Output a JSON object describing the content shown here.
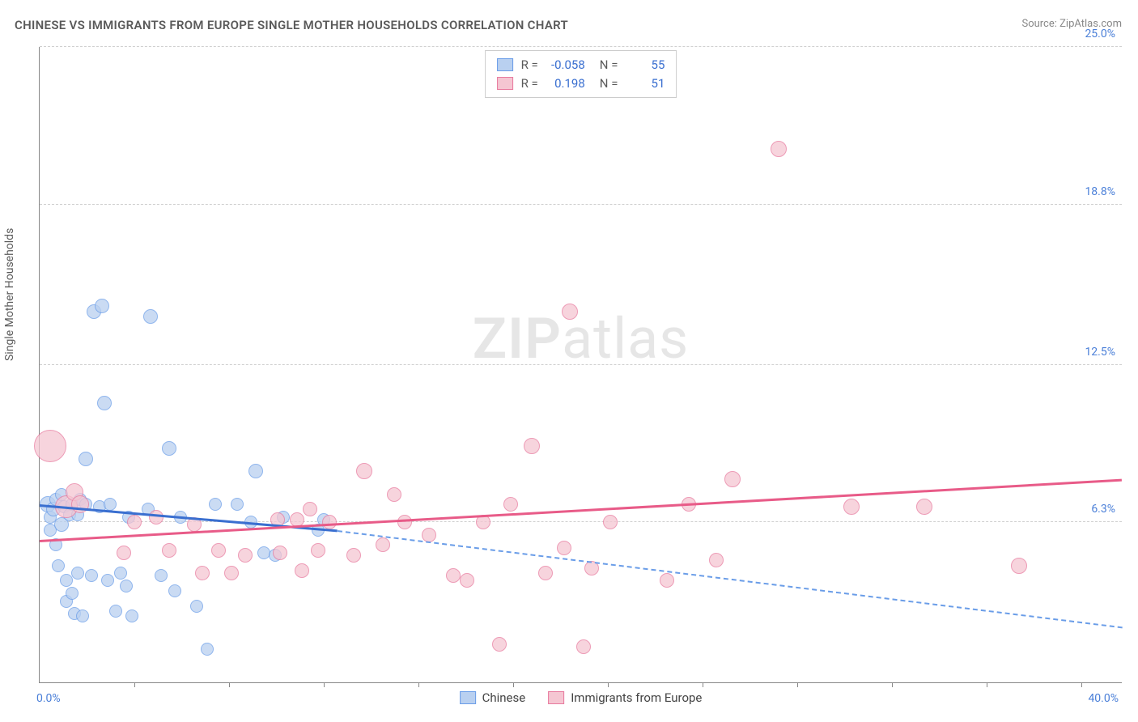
{
  "title": "CHINESE VS IMMIGRANTS FROM EUROPE SINGLE MOTHER HOUSEHOLDS CORRELATION CHART",
  "source": "Source: ZipAtlas.com",
  "ylabel": "Single Mother Households",
  "watermark_bold": "ZIP",
  "watermark_rest": "atlas",
  "chart": {
    "type": "scatter",
    "xlim": [
      0,
      40
    ],
    "ylim": [
      0,
      25
    ],
    "xtick_labels": {
      "min": "0.0%",
      "max": "40.0%"
    },
    "ytick_lines": [
      {
        "v": 6.3,
        "label": "6.3%"
      },
      {
        "v": 12.5,
        "label": "12.5%"
      },
      {
        "v": 18.8,
        "label": "18.8%"
      },
      {
        "v": 25.0,
        "label": "25.0%"
      }
    ],
    "vtick_positions": [
      3.5,
      7,
      10.5,
      14,
      17.5,
      21,
      24.5,
      28,
      31.5,
      35,
      38.5
    ],
    "background_color": "#ffffff",
    "grid_color": "#d0d0d0",
    "series": [
      {
        "key": "chinese",
        "label": "Chinese",
        "fill": "#b9d0f0",
        "stroke": "#6a9de8",
        "R": "-0.058",
        "N": "55",
        "trend": {
          "x1": 0,
          "y1": 7.0,
          "x2": 11,
          "y2": 6.0,
          "solid_color": "#3a6fd0",
          "dash_from_x": 11,
          "dash_to_x": 40,
          "dash_y1": 6.0,
          "dash_y2": 2.2,
          "dash_color": "#6a9de8"
        },
        "points": [
          {
            "x": 0.3,
            "y": 7.0,
            "r": 10
          },
          {
            "x": 0.4,
            "y": 6.5,
            "r": 8
          },
          {
            "x": 0.4,
            "y": 6.0,
            "r": 8
          },
          {
            "x": 0.5,
            "y": 6.8,
            "r": 9
          },
          {
            "x": 0.6,
            "y": 7.2,
            "r": 8
          },
          {
            "x": 0.6,
            "y": 5.4,
            "r": 8
          },
          {
            "x": 0.7,
            "y": 4.6,
            "r": 8
          },
          {
            "x": 0.8,
            "y": 6.2,
            "r": 9
          },
          {
            "x": 0.8,
            "y": 7.4,
            "r": 8
          },
          {
            "x": 0.9,
            "y": 6.9,
            "r": 8
          },
          {
            "x": 1.0,
            "y": 4.0,
            "r": 8
          },
          {
            "x": 1.0,
            "y": 3.2,
            "r": 8
          },
          {
            "x": 1.1,
            "y": 6.6,
            "r": 8
          },
          {
            "x": 1.2,
            "y": 3.5,
            "r": 8
          },
          {
            "x": 1.2,
            "y": 7.0,
            "r": 8
          },
          {
            "x": 1.3,
            "y": 2.7,
            "r": 8
          },
          {
            "x": 1.4,
            "y": 6.6,
            "r": 8
          },
          {
            "x": 1.4,
            "y": 4.3,
            "r": 8
          },
          {
            "x": 1.5,
            "y": 7.2,
            "r": 8
          },
          {
            "x": 1.6,
            "y": 2.6,
            "r": 8
          },
          {
            "x": 1.7,
            "y": 8.8,
            "r": 9
          },
          {
            "x": 1.7,
            "y": 7.0,
            "r": 8
          },
          {
            "x": 1.9,
            "y": 4.2,
            "r": 8
          },
          {
            "x": 2.0,
            "y": 14.6,
            "r": 9
          },
          {
            "x": 2.2,
            "y": 6.9,
            "r": 8
          },
          {
            "x": 2.3,
            "y": 14.8,
            "r": 9
          },
          {
            "x": 2.4,
            "y": 11.0,
            "r": 9
          },
          {
            "x": 2.5,
            "y": 4.0,
            "r": 8
          },
          {
            "x": 2.6,
            "y": 7.0,
            "r": 8
          },
          {
            "x": 2.8,
            "y": 2.8,
            "r": 8
          },
          {
            "x": 3.0,
            "y": 4.3,
            "r": 8
          },
          {
            "x": 3.2,
            "y": 3.8,
            "r": 8
          },
          {
            "x": 3.3,
            "y": 6.5,
            "r": 8
          },
          {
            "x": 3.4,
            "y": 2.6,
            "r": 8
          },
          {
            "x": 4.0,
            "y": 6.8,
            "r": 8
          },
          {
            "x": 4.1,
            "y": 14.4,
            "r": 9
          },
          {
            "x": 4.5,
            "y": 4.2,
            "r": 8
          },
          {
            "x": 4.8,
            "y": 9.2,
            "r": 9
          },
          {
            "x": 5.0,
            "y": 3.6,
            "r": 8
          },
          {
            "x": 5.2,
            "y": 6.5,
            "r": 8
          },
          {
            "x": 5.8,
            "y": 3.0,
            "r": 8
          },
          {
            "x": 6.2,
            "y": 1.3,
            "r": 8
          },
          {
            "x": 6.5,
            "y": 7.0,
            "r": 8
          },
          {
            "x": 7.3,
            "y": 7.0,
            "r": 8
          },
          {
            "x": 7.8,
            "y": 6.3,
            "r": 8
          },
          {
            "x": 8.0,
            "y": 8.3,
            "r": 9
          },
          {
            "x": 8.3,
            "y": 5.1,
            "r": 8
          },
          {
            "x": 8.7,
            "y": 5.0,
            "r": 8
          },
          {
            "x": 9.0,
            "y": 6.5,
            "r": 8
          },
          {
            "x": 10.3,
            "y": 6.0,
            "r": 8
          },
          {
            "x": 10.5,
            "y": 6.4,
            "r": 8
          }
        ]
      },
      {
        "key": "europe",
        "label": "Immigrants from Europe",
        "fill": "#f5c6d2",
        "stroke": "#e87a9e",
        "R": "0.198",
        "N": "51",
        "trend": {
          "x1": 0,
          "y1": 5.6,
          "x2": 40,
          "y2": 8.0,
          "solid_color": "#e85b88"
        },
        "points": [
          {
            "x": 0.4,
            "y": 9.3,
            "r": 20
          },
          {
            "x": 1.0,
            "y": 6.9,
            "r": 14
          },
          {
            "x": 1.3,
            "y": 7.5,
            "r": 11
          },
          {
            "x": 1.5,
            "y": 7.0,
            "r": 11
          },
          {
            "x": 3.1,
            "y": 5.1,
            "r": 9
          },
          {
            "x": 3.5,
            "y": 6.3,
            "r": 9
          },
          {
            "x": 4.3,
            "y": 6.5,
            "r": 9
          },
          {
            "x": 4.8,
            "y": 5.2,
            "r": 9
          },
          {
            "x": 5.7,
            "y": 6.2,
            "r": 9
          },
          {
            "x": 6.0,
            "y": 4.3,
            "r": 9
          },
          {
            "x": 6.6,
            "y": 5.2,
            "r": 9
          },
          {
            "x": 7.1,
            "y": 4.3,
            "r": 9
          },
          {
            "x": 7.6,
            "y": 5.0,
            "r": 9
          },
          {
            "x": 8.8,
            "y": 6.4,
            "r": 9
          },
          {
            "x": 8.9,
            "y": 5.1,
            "r": 9
          },
          {
            "x": 9.5,
            "y": 6.4,
            "r": 9
          },
          {
            "x": 9.7,
            "y": 4.4,
            "r": 9
          },
          {
            "x": 10.0,
            "y": 6.8,
            "r": 9
          },
          {
            "x": 10.3,
            "y": 5.2,
            "r": 9
          },
          {
            "x": 10.7,
            "y": 6.3,
            "r": 9
          },
          {
            "x": 11.6,
            "y": 5.0,
            "r": 9
          },
          {
            "x": 12.0,
            "y": 8.3,
            "r": 10
          },
          {
            "x": 12.7,
            "y": 5.4,
            "r": 9
          },
          {
            "x": 13.1,
            "y": 7.4,
            "r": 9
          },
          {
            "x": 13.5,
            "y": 6.3,
            "r": 9
          },
          {
            "x": 14.4,
            "y": 5.8,
            "r": 9
          },
          {
            "x": 15.3,
            "y": 4.2,
            "r": 9
          },
          {
            "x": 15.8,
            "y": 4.0,
            "r": 9
          },
          {
            "x": 16.4,
            "y": 6.3,
            "r": 9
          },
          {
            "x": 17.0,
            "y": 1.5,
            "r": 9
          },
          {
            "x": 17.4,
            "y": 7.0,
            "r": 9
          },
          {
            "x": 18.2,
            "y": 9.3,
            "r": 10
          },
          {
            "x": 18.7,
            "y": 4.3,
            "r": 9
          },
          {
            "x": 19.4,
            "y": 5.3,
            "r": 9
          },
          {
            "x": 19.6,
            "y": 14.6,
            "r": 10
          },
          {
            "x": 20.1,
            "y": 1.4,
            "r": 9
          },
          {
            "x": 20.4,
            "y": 4.5,
            "r": 9
          },
          {
            "x": 21.1,
            "y": 6.3,
            "r": 9
          },
          {
            "x": 23.2,
            "y": 4.0,
            "r": 9
          },
          {
            "x": 24.0,
            "y": 7.0,
            "r": 9
          },
          {
            "x": 25.0,
            "y": 4.8,
            "r": 9
          },
          {
            "x": 25.6,
            "y": 8.0,
            "r": 10
          },
          {
            "x": 27.3,
            "y": 21.0,
            "r": 10
          },
          {
            "x": 30.0,
            "y": 6.9,
            "r": 10
          },
          {
            "x": 32.7,
            "y": 6.9,
            "r": 10
          },
          {
            "x": 36.2,
            "y": 4.6,
            "r": 10
          }
        ]
      }
    ]
  },
  "stats_labels": {
    "R": "R =",
    "N": "N ="
  },
  "colors": {
    "text_muted": "#5a5a5a",
    "accent_blue": "#4a7fd8",
    "value_blue": "#3a6fd0"
  }
}
